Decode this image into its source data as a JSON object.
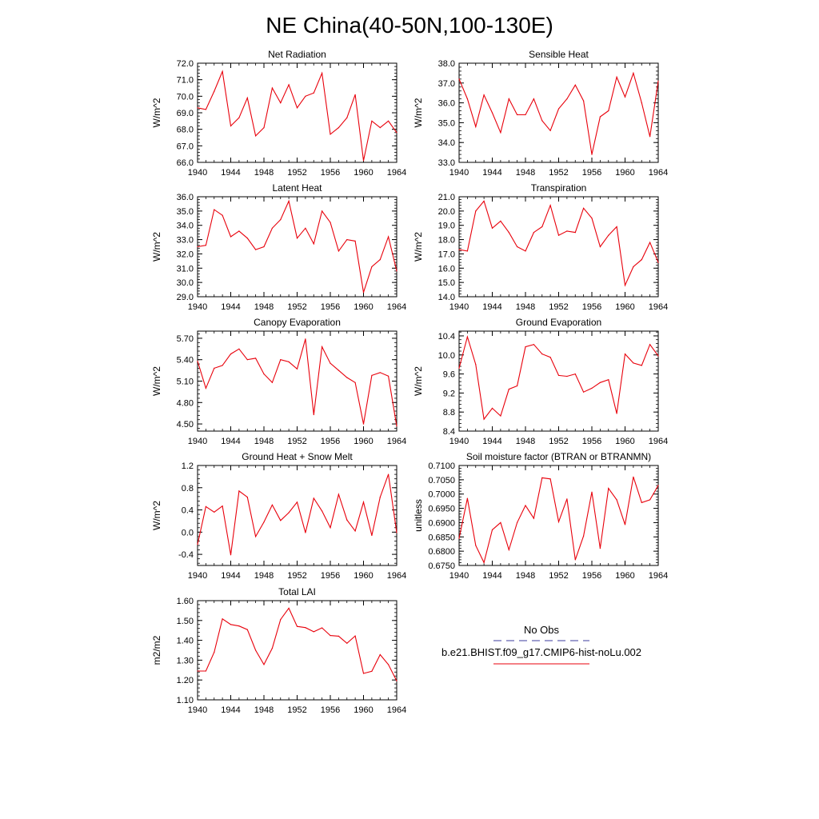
{
  "figure": {
    "title": "NE China(40-50N,100-130E)"
  },
  "legend": {
    "obs_label": "No Obs",
    "obs_color": "#3b3b9e",
    "model_label": "b.e21.BHIST.f09_g17.CMIP6-hist-noLu.002",
    "model_color": "#e8000b"
  },
  "chart_data": [
    {
      "type": "line",
      "title": "Net Radiation",
      "ylabel": "W/m^2",
      "xlim": [
        1940,
        1964
      ],
      "ylim": [
        66.0,
        72.0
      ],
      "xticks": [
        1940,
        1944,
        1948,
        1952,
        1956,
        1960,
        1964
      ],
      "yticks": [
        66.0,
        67.0,
        68.0,
        69.0,
        70.0,
        71.0,
        72.0
      ],
      "ydecimals": 1,
      "x": [
        1940,
        1941,
        1942,
        1943,
        1944,
        1945,
        1946,
        1947,
        1948,
        1949,
        1950,
        1951,
        1952,
        1953,
        1954,
        1955,
        1956,
        1957,
        1958,
        1959,
        1960,
        1961,
        1962,
        1963,
        1964
      ],
      "series": [
        {
          "values": [
            69.3,
            69.2,
            70.3,
            71.5,
            68.2,
            68.7,
            69.9,
            67.6,
            68.1,
            70.5,
            69.6,
            70.7,
            69.3,
            70.0,
            70.2,
            71.4,
            67.7,
            68.1,
            68.7,
            70.1,
            66.1,
            68.5,
            68.1,
            68.5,
            67.8
          ]
        }
      ]
    },
    {
      "type": "line",
      "title": "Sensible Heat",
      "ylabel": "W/m^2",
      "xlim": [
        1940,
        1964
      ],
      "ylim": [
        33.0,
        38.0
      ],
      "xticks": [
        1940,
        1944,
        1948,
        1952,
        1956,
        1960,
        1964
      ],
      "yticks": [
        33.0,
        34.0,
        35.0,
        36.0,
        37.0,
        38.0
      ],
      "ydecimals": 1,
      "x": [
        1940,
        1941,
        1942,
        1943,
        1944,
        1945,
        1946,
        1947,
        1948,
        1949,
        1950,
        1951,
        1952,
        1953,
        1954,
        1955,
        1956,
        1957,
        1958,
        1959,
        1960,
        1961,
        1962,
        1963,
        1964
      ],
      "series": [
        {
          "values": [
            37.2,
            36.2,
            34.8,
            36.4,
            35.5,
            34.5,
            36.2,
            35.4,
            35.4,
            36.2,
            35.1,
            34.6,
            35.7,
            36.2,
            36.9,
            36.1,
            33.4,
            35.3,
            35.6,
            37.3,
            36.3,
            37.5,
            36.0,
            34.3,
            37.1
          ]
        }
      ]
    },
    {
      "type": "line",
      "title": "Latent Heat",
      "ylabel": "W/m^2",
      "xlim": [
        1940,
        1964
      ],
      "ylim": [
        29.0,
        36.0
      ],
      "xticks": [
        1940,
        1944,
        1948,
        1952,
        1956,
        1960,
        1964
      ],
      "yticks": [
        29.0,
        30.0,
        31.0,
        32.0,
        33.0,
        34.0,
        35.0,
        36.0
      ],
      "ydecimals": 1,
      "x": [
        1940,
        1941,
        1942,
        1943,
        1944,
        1945,
        1946,
        1947,
        1948,
        1949,
        1950,
        1951,
        1952,
        1953,
        1954,
        1955,
        1956,
        1957,
        1958,
        1959,
        1960,
        1961,
        1962,
        1963,
        1964
      ],
      "series": [
        {
          "values": [
            32.5,
            32.6,
            35.1,
            34.7,
            33.2,
            33.6,
            33.1,
            32.3,
            32.5,
            33.8,
            34.4,
            35.7,
            33.1,
            33.8,
            32.7,
            35.0,
            34.2,
            32.2,
            33.0,
            32.9,
            29.3,
            31.1,
            31.6,
            33.2,
            30.8
          ]
        }
      ]
    },
    {
      "type": "line",
      "title": "Transpiration",
      "ylabel": "W/m^2",
      "xlim": [
        1940,
        1964
      ],
      "ylim": [
        14.0,
        21.0
      ],
      "xticks": [
        1940,
        1944,
        1948,
        1952,
        1956,
        1960,
        1964
      ],
      "yticks": [
        14.0,
        15.0,
        16.0,
        17.0,
        18.0,
        19.0,
        20.0,
        21.0
      ],
      "ydecimals": 1,
      "x": [
        1940,
        1941,
        1942,
        1943,
        1944,
        1945,
        1946,
        1947,
        1948,
        1949,
        1950,
        1951,
        1952,
        1953,
        1954,
        1955,
        1956,
        1957,
        1958,
        1959,
        1960,
        1961,
        1962,
        1963,
        1964
      ],
      "series": [
        {
          "values": [
            17.3,
            17.2,
            20.0,
            20.7,
            18.8,
            19.3,
            18.5,
            17.5,
            17.2,
            18.5,
            18.9,
            20.4,
            18.3,
            18.6,
            18.5,
            20.2,
            19.5,
            17.5,
            18.3,
            18.9,
            14.8,
            16.1,
            16.6,
            17.8,
            16.4
          ]
        }
      ]
    },
    {
      "type": "line",
      "title": "Canopy Evaporation",
      "ylabel": "W/m^2",
      "xlim": [
        1940,
        1964
      ],
      "ylim": [
        4.4,
        5.8
      ],
      "xticks": [
        1940,
        1944,
        1948,
        1952,
        1956,
        1960,
        1964
      ],
      "yticks": [
        4.5,
        4.8,
        5.1,
        5.4,
        5.7
      ],
      "ydecimals": 2,
      "x": [
        1940,
        1941,
        1942,
        1943,
        1944,
        1945,
        1946,
        1947,
        1948,
        1949,
        1950,
        1951,
        1952,
        1953,
        1954,
        1955,
        1956,
        1957,
        1958,
        1959,
        1960,
        1961,
        1962,
        1963,
        1964
      ],
      "series": [
        {
          "values": [
            5.38,
            5.0,
            5.28,
            5.32,
            5.48,
            5.55,
            5.4,
            5.42,
            5.2,
            5.08,
            5.4,
            5.37,
            5.27,
            5.69,
            4.63,
            5.58,
            5.35,
            5.25,
            5.15,
            5.08,
            4.5,
            5.18,
            5.22,
            5.17,
            4.47
          ]
        }
      ]
    },
    {
      "type": "line",
      "title": "Ground Evaporation",
      "ylabel": "W/m^2",
      "xlim": [
        1940,
        1964
      ],
      "ylim": [
        8.4,
        10.5
      ],
      "xticks": [
        1940,
        1944,
        1948,
        1952,
        1956,
        1960,
        1964
      ],
      "yticks": [
        8.4,
        8.8,
        9.2,
        9.6,
        10.0,
        10.4
      ],
      "ydecimals": 1,
      "x": [
        1940,
        1941,
        1942,
        1943,
        1944,
        1945,
        1946,
        1947,
        1948,
        1949,
        1950,
        1951,
        1952,
        1953,
        1954,
        1955,
        1956,
        1957,
        1958,
        1959,
        1960,
        1961,
        1962,
        1963,
        1964
      ],
      "series": [
        {
          "values": [
            9.72,
            10.38,
            9.8,
            8.65,
            8.88,
            8.72,
            9.28,
            9.35,
            10.17,
            10.22,
            10.02,
            9.95,
            9.57,
            9.55,
            9.6,
            9.22,
            9.3,
            9.42,
            9.48,
            8.77,
            10.02,
            9.83,
            9.78,
            10.22,
            9.98
          ]
        }
      ]
    },
    {
      "type": "line",
      "title": "Ground Heat + Snow Melt",
      "ylabel": "W/m^2",
      "xlim": [
        1940,
        1964
      ],
      "ylim": [
        -0.6,
        1.2
      ],
      "xticks": [
        1940,
        1944,
        1948,
        1952,
        1956,
        1960,
        1964
      ],
      "yticks": [
        -0.4,
        0.0,
        0.4,
        0.8,
        1.2
      ],
      "ydecimals": 1,
      "x": [
        1940,
        1941,
        1942,
        1943,
        1944,
        1945,
        1946,
        1947,
        1948,
        1949,
        1950,
        1951,
        1952,
        1953,
        1954,
        1955,
        1956,
        1957,
        1958,
        1959,
        1960,
        1961,
        1962,
        1963,
        1964
      ],
      "series": [
        {
          "values": [
            -0.22,
            0.46,
            0.36,
            0.47,
            -0.41,
            0.74,
            0.63,
            -0.08,
            0.18,
            0.49,
            0.21,
            0.35,
            0.54,
            -0.01,
            0.61,
            0.38,
            0.08,
            0.68,
            0.22,
            0.02,
            0.54,
            -0.06,
            0.63,
            1.04,
            -0.01
          ]
        }
      ]
    },
    {
      "type": "line",
      "title": "Soil moisture factor (BTRAN or BTRANMN)",
      "ylabel": "unitless",
      "xlim": [
        1940,
        1964
      ],
      "ylim": [
        0.675,
        0.71
      ],
      "xticks": [
        1940,
        1944,
        1948,
        1952,
        1956,
        1960,
        1964
      ],
      "yticks": [
        0.675,
        0.68,
        0.685,
        0.69,
        0.695,
        0.7,
        0.705,
        0.71
      ],
      "ydecimals": 4,
      "x": [
        1940,
        1941,
        1942,
        1943,
        1944,
        1945,
        1946,
        1947,
        1948,
        1949,
        1950,
        1951,
        1952,
        1953,
        1954,
        1955,
        1956,
        1957,
        1958,
        1959,
        1960,
        1961,
        1962,
        1963,
        1964
      ],
      "series": [
        {
          "values": [
            0.6845,
            0.6985,
            0.682,
            0.676,
            0.6875,
            0.69,
            0.6805,
            0.69,
            0.696,
            0.6915,
            0.7057,
            0.7053,
            0.6903,
            0.6983,
            0.677,
            0.6853,
            0.7007,
            0.681,
            0.702,
            0.698,
            0.6893,
            0.706,
            0.697,
            0.698,
            0.703
          ]
        }
      ]
    },
    {
      "type": "line",
      "title": "Total LAI",
      "ylabel": "m2/m2",
      "xlim": [
        1940,
        1964
      ],
      "ylim": [
        1.1,
        1.6
      ],
      "xticks": [
        1940,
        1944,
        1948,
        1952,
        1956,
        1960,
        1964
      ],
      "yticks": [
        1.1,
        1.2,
        1.3,
        1.4,
        1.5,
        1.6
      ],
      "ydecimals": 2,
      "x": [
        1940,
        1941,
        1942,
        1943,
        1944,
        1945,
        1946,
        1947,
        1948,
        1949,
        1950,
        1951,
        1952,
        1953,
        1954,
        1955,
        1956,
        1957,
        1958,
        1959,
        1960,
        1961,
        1962,
        1963,
        1964
      ],
      "series": [
        {
          "values": [
            1.245,
            1.245,
            1.34,
            1.508,
            1.48,
            1.472,
            1.454,
            1.35,
            1.278,
            1.36,
            1.505,
            1.562,
            1.47,
            1.464,
            1.443,
            1.463,
            1.424,
            1.421,
            1.385,
            1.422,
            1.233,
            1.244,
            1.328,
            1.278,
            1.195
          ]
        }
      ]
    }
  ]
}
